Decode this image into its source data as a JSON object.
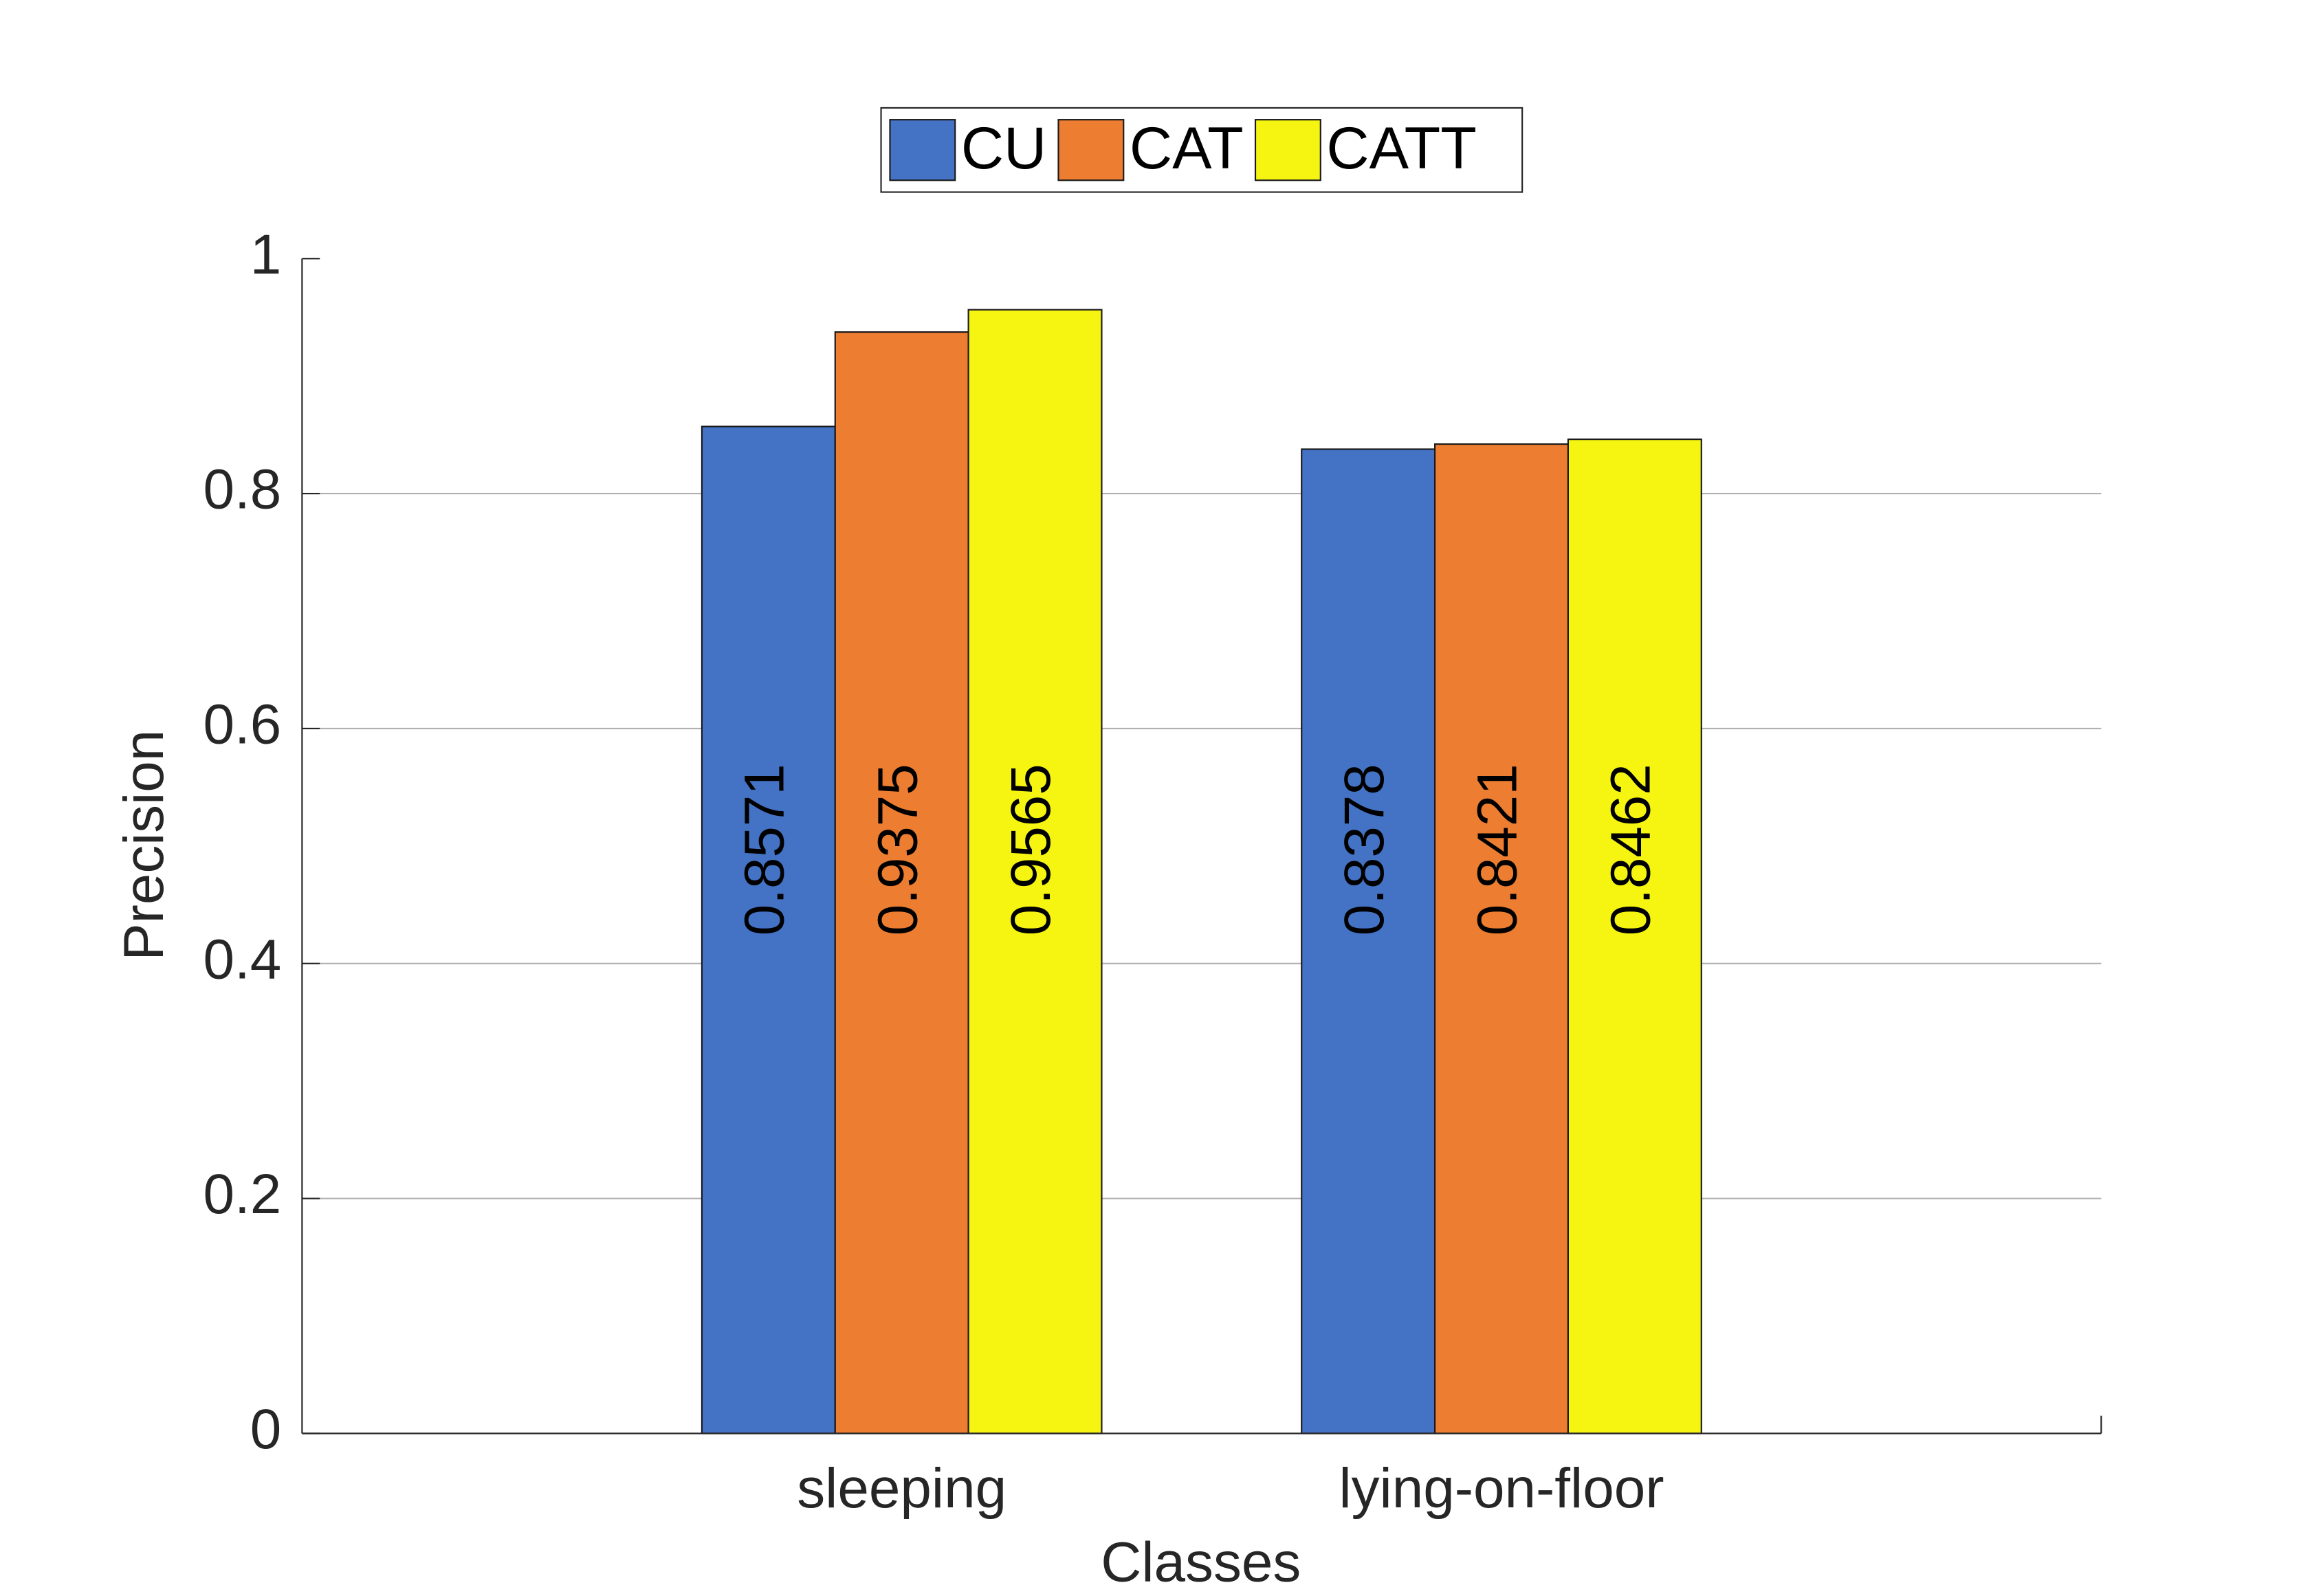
{
  "chart_data": {
    "type": "bar",
    "x_label": "Classes",
    "y_label": "Precision",
    "categories": [
      "sleeping",
      "lying-on-floor"
    ],
    "series": [
      {
        "name": "CU",
        "color": "#4472c4",
        "values": [
          0.8571,
          0.8378
        ]
      },
      {
        "name": "CAT",
        "color": "#ed7d31",
        "values": [
          0.9375,
          0.8421
        ]
      },
      {
        "name": "CATT",
        "color": "#f5f511",
        "values": [
          0.9565,
          0.8462
        ]
      }
    ],
    "ylim": [
      0,
      1
    ],
    "yticks": [
      0,
      0.2,
      0.4,
      0.6,
      0.8,
      1
    ],
    "grid": true,
    "legend": "top"
  }
}
